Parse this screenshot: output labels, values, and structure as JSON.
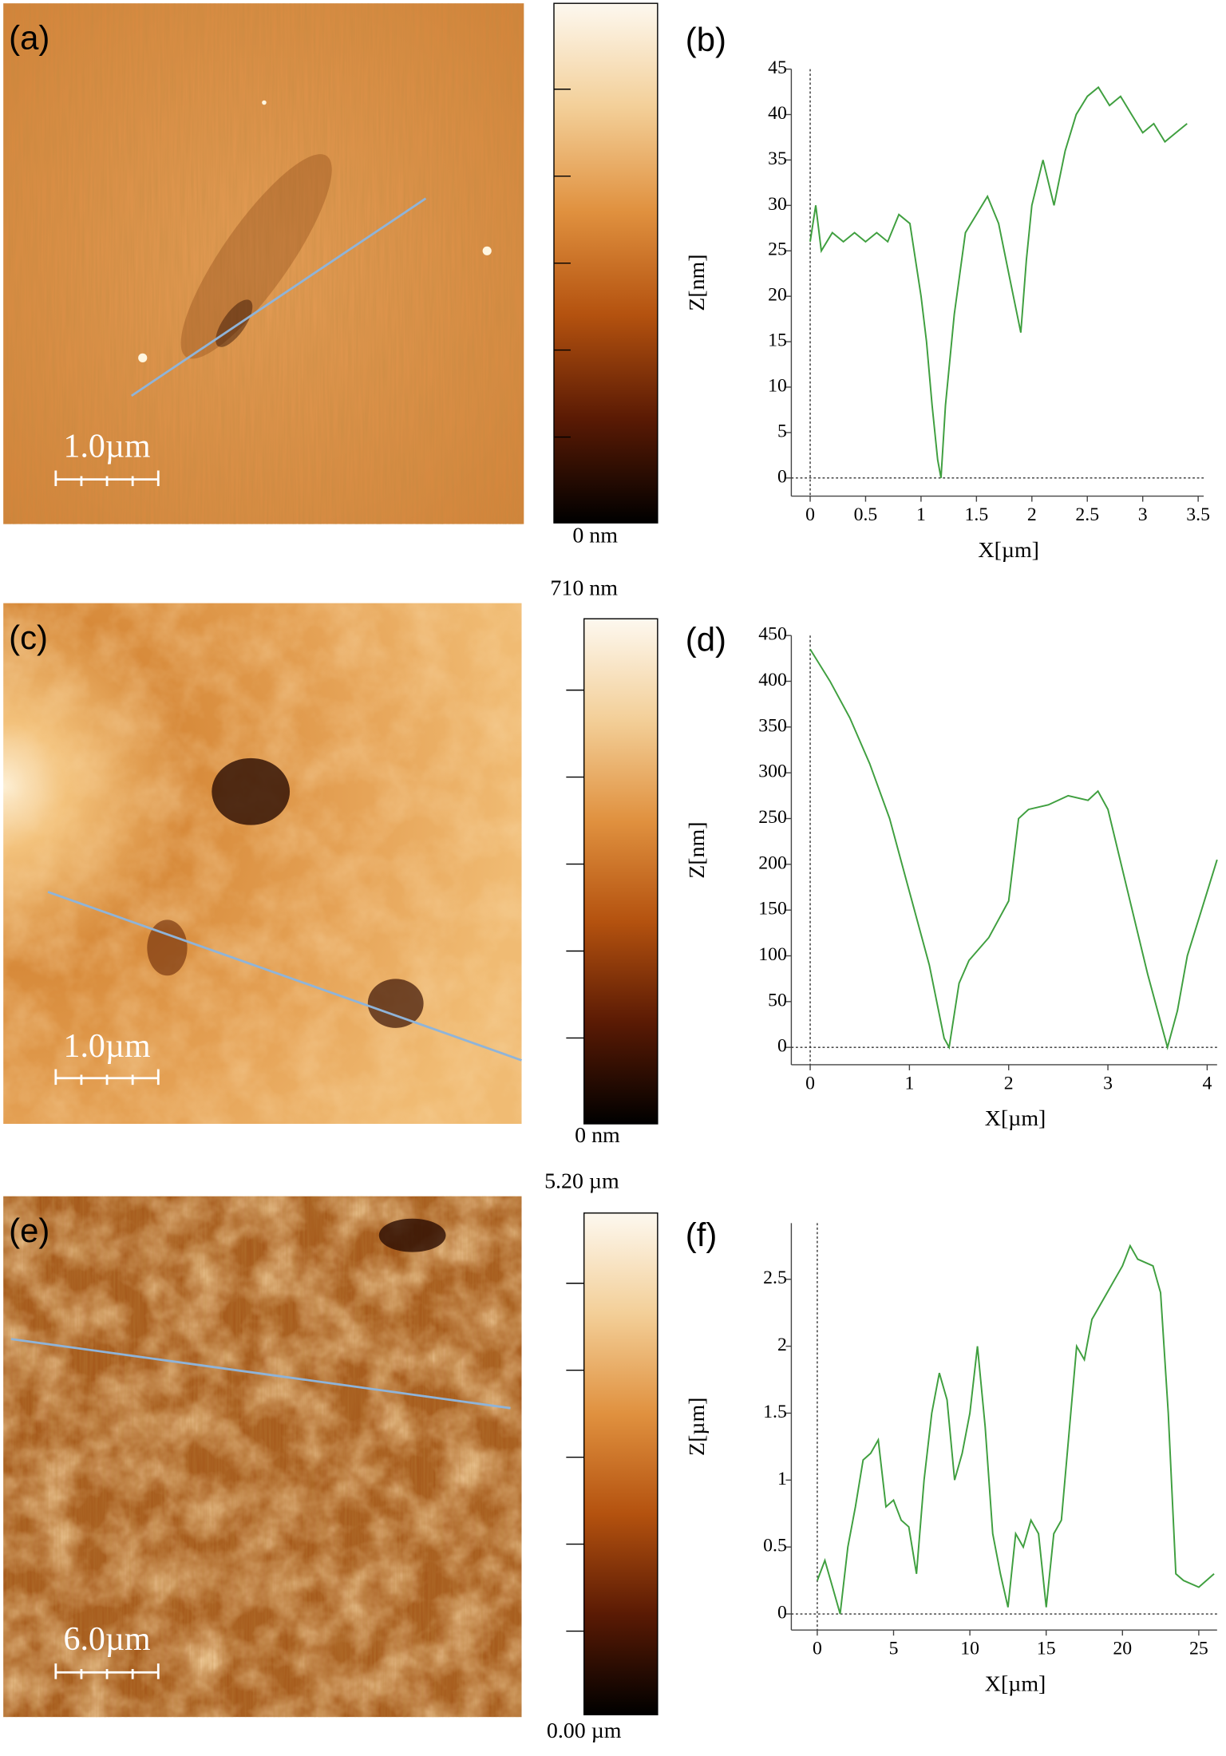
{
  "panels": [
    {
      "label": "(a)",
      "scale_bar": "1.0µm",
      "colorbar_min": "0 nm"
    },
    {
      "label": "(c)",
      "scale_bar": "1.0µm",
      "colorbar_max": "710 nm",
      "colorbar_min": "0 nm"
    },
    {
      "label": "(e)",
      "scale_bar": "6.0µm",
      "colorbar_max": "5.20 µm",
      "colorbar_min": "0.00 µm"
    }
  ],
  "chart_data": [
    {
      "type": "line",
      "title": "(b)",
      "x_label": "X[µm]",
      "y_label": "Z[nm]",
      "color": "#3f9f3f",
      "xlim": [
        -0.17,
        3.55
      ],
      "ylim": [
        -2,
        45
      ],
      "xticks": [
        0,
        0.5,
        1,
        1.5,
        2,
        2.5,
        3,
        3.5
      ],
      "yticks": [
        0,
        5,
        10,
        15,
        20,
        25,
        30,
        35,
        40,
        45
      ],
      "x": [
        0,
        0.05,
        0.1,
        0.2,
        0.3,
        0.4,
        0.5,
        0.6,
        0.7,
        0.8,
        0.9,
        0.95,
        1.0,
        1.05,
        1.1,
        1.15,
        1.18,
        1.22,
        1.3,
        1.4,
        1.5,
        1.6,
        1.7,
        1.8,
        1.9,
        1.95,
        2.0,
        2.1,
        2.2,
        2.3,
        2.4,
        2.5,
        2.6,
        2.7,
        2.8,
        2.9,
        3.0,
        3.1,
        3.2,
        3.3,
        3.4
      ],
      "values": [
        26,
        30,
        25,
        27,
        26,
        27,
        26,
        27,
        26,
        29,
        28,
        24,
        20,
        15,
        8,
        2,
        0,
        8,
        18,
        27,
        29,
        31,
        28,
        22,
        16,
        24,
        30,
        35,
        30,
        36,
        40,
        42,
        43,
        41,
        42,
        40,
        38,
        39,
        37,
        38,
        39
      ]
    },
    {
      "type": "line",
      "title": "(d)",
      "x_label": "X[µm]",
      "y_label": "Z[nm]",
      "color": "#3f9f3f",
      "xlim": [
        -0.19,
        4.1
      ],
      "ylim": [
        -19,
        450
      ],
      "xticks": [
        0,
        1,
        2,
        3,
        4
      ],
      "yticks": [
        0,
        50,
        100,
        150,
        200,
        250,
        300,
        350,
        400,
        450
      ],
      "x": [
        0,
        0.2,
        0.4,
        0.6,
        0.8,
        1.0,
        1.2,
        1.35,
        1.4,
        1.5,
        1.6,
        1.8,
        2.0,
        2.1,
        2.2,
        2.4,
        2.6,
        2.8,
        2.9,
        3.0,
        3.2,
        3.4,
        3.6,
        3.7,
        3.8,
        4.0,
        4.1
      ],
      "values": [
        435,
        400,
        360,
        310,
        250,
        170,
        90,
        10,
        0,
        70,
        95,
        120,
        160,
        250,
        260,
        265,
        275,
        270,
        280,
        260,
        170,
        80,
        0,
        40,
        100,
        170,
        205
      ]
    },
    {
      "type": "line",
      "title": "(f)",
      "x_label": "X[µm]",
      "y_label": "Z[µm]",
      "color": "#3f9f3f",
      "xlim": [
        -1.7,
        26.2
      ],
      "ylim": [
        -0.12,
        2.92
      ],
      "xticks": [
        0,
        5,
        10,
        15,
        20,
        25
      ],
      "yticks": [
        0,
        0.5,
        1,
        1.5,
        2,
        2.5
      ],
      "x": [
        0,
        0.5,
        1,
        1.5,
        2,
        2.5,
        3,
        3.5,
        4,
        4.5,
        5,
        5.5,
        6,
        6.5,
        7,
        7.5,
        8,
        8.5,
        9,
        9.5,
        10,
        10.5,
        11,
        11.5,
        12,
        12.5,
        13,
        13.5,
        14,
        14.5,
        15,
        15.5,
        16,
        17,
        17.5,
        18,
        19,
        20,
        20.5,
        21,
        22,
        22.5,
        23,
        23.5,
        24,
        25,
        26
      ],
      "values": [
        0.25,
        0.4,
        0.2,
        0.0,
        0.5,
        0.8,
        1.15,
        1.2,
        1.3,
        0.8,
        0.85,
        0.7,
        0.65,
        0.3,
        1.0,
        1.5,
        1.8,
        1.6,
        1.0,
        1.2,
        1.5,
        2.0,
        1.4,
        0.6,
        0.3,
        0.05,
        0.6,
        0.5,
        0.7,
        0.6,
        0.05,
        0.6,
        0.7,
        2.0,
        1.9,
        2.2,
        2.4,
        2.6,
        2.75,
        2.65,
        2.6,
        2.4,
        1.5,
        0.3,
        0.25,
        0.2,
        0.3
      ]
    }
  ]
}
